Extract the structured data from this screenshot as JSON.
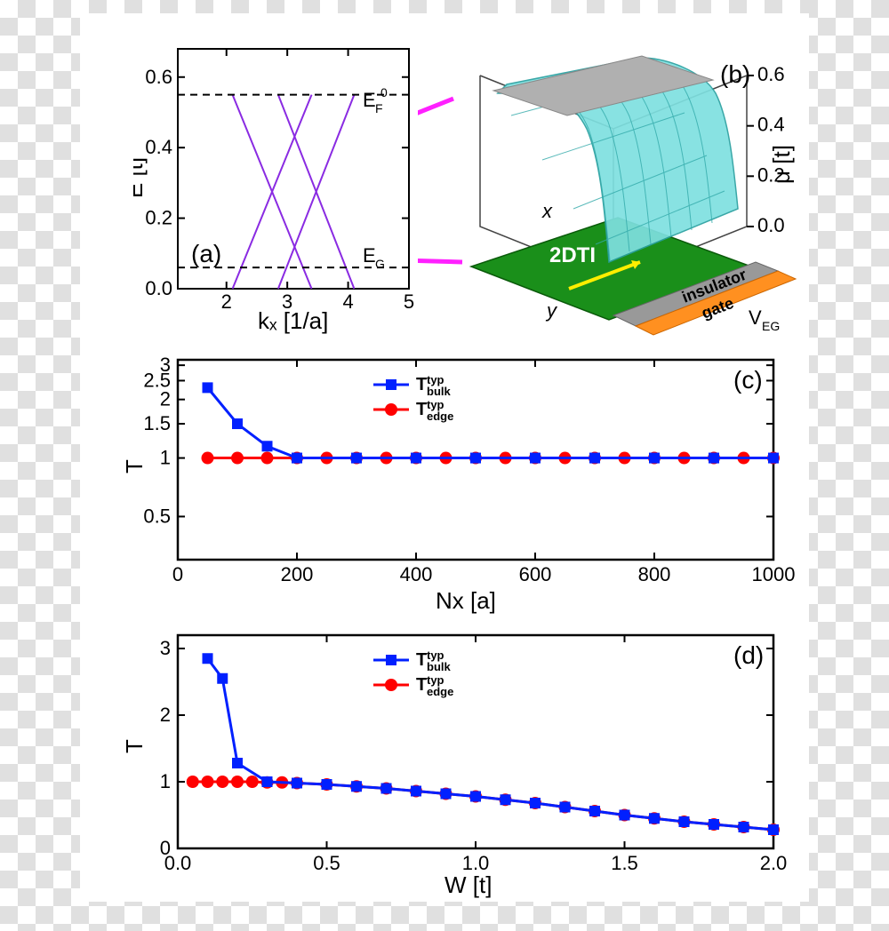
{
  "panel_a": {
    "label": "(a)",
    "xlabel": "kₓ  [1/a]",
    "ylabel": "E  [t]",
    "xlim": [
      1.2,
      5.0
    ],
    "ylim": [
      0.0,
      0.68
    ],
    "xticks": [
      2,
      3,
      4,
      5
    ],
    "yticks": [
      0.0,
      0.2,
      0.4,
      0.6
    ],
    "line_color": "#8a2be2",
    "dash_lines": [
      {
        "y": 0.55,
        "label": "E_F^0"
      },
      {
        "y": 0.06,
        "label": "E_G"
      }
    ]
  },
  "panel_b": {
    "label": "(b)",
    "zlabel": "μ  [t]",
    "zticks": [
      0.0,
      0.2,
      0.4,
      0.6
    ],
    "text_2dti": "2DTI",
    "text_insulator": "insulator",
    "text_gate": "gate",
    "text_veg": "V_EG",
    "text_x": "x",
    "text_y": "y",
    "surface_color": "#7ee0e0",
    "base_color": "#1a8f1a",
    "gate_color": "#ff9020",
    "insulator_color": "#999999"
  },
  "panel_c": {
    "label": "(c)",
    "xlabel": "Nx  [a]",
    "ylabel": "T",
    "xlim": [
      0,
      1000
    ],
    "ylim": [
      0.3,
      3.2
    ],
    "xticks": [
      0,
      200,
      400,
      600,
      800,
      1000
    ],
    "yticks": [
      0.5,
      1,
      1.5,
      2,
      2.5,
      3
    ],
    "ytick_labels": [
      "0.5",
      "1",
      "1.5",
      "2",
      "2.5",
      "3"
    ],
    "series_bulk": {
      "label": "T_bulk^typ",
      "color": "#0020ff",
      "marker": "square",
      "x": [
        50,
        100,
        150,
        200,
        300,
        400,
        500,
        600,
        700,
        800,
        900,
        1000
      ],
      "y": [
        2.3,
        1.5,
        1.15,
        1.0,
        1.0,
        1.0,
        1.0,
        1.0,
        1.0,
        1.0,
        1.0,
        1.0
      ]
    },
    "series_edge": {
      "label": "T_edge^typ",
      "color": "#ff0000",
      "marker": "circle",
      "x": [
        50,
        100,
        150,
        200,
        250,
        300,
        350,
        400,
        450,
        500,
        550,
        600,
        650,
        700,
        750,
        800,
        850,
        900,
        950,
        1000
      ],
      "y": [
        1.0,
        1.0,
        1.0,
        1.0,
        1.0,
        1.0,
        1.0,
        1.0,
        1.0,
        1.0,
        1.0,
        1.0,
        1.0,
        1.0,
        1.0,
        1.0,
        1.0,
        1.0,
        1.0,
        1.0
      ]
    }
  },
  "panel_d": {
    "label": "(d)",
    "xlabel": "W  [t]",
    "ylabel": "T",
    "xlim": [
      0.0,
      2.0
    ],
    "ylim": [
      0.0,
      3.2
    ],
    "xticks": [
      0.0,
      0.5,
      1.0,
      1.5,
      2.0
    ],
    "yticks": [
      0,
      1,
      2,
      3
    ],
    "series_bulk": {
      "label": "T_bulk^typ",
      "color": "#0020ff",
      "marker": "square",
      "x": [
        0.1,
        0.15,
        0.2,
        0.3,
        0.4,
        0.5,
        0.6,
        0.7,
        0.8,
        0.9,
        1.0,
        1.1,
        1.2,
        1.3,
        1.4,
        1.5,
        1.6,
        1.7,
        1.8,
        1.9,
        2.0
      ],
      "y": [
        2.85,
        2.55,
        1.28,
        1.0,
        0.98,
        0.96,
        0.93,
        0.9,
        0.86,
        0.82,
        0.78,
        0.73,
        0.68,
        0.62,
        0.56,
        0.5,
        0.45,
        0.4,
        0.36,
        0.32,
        0.28
      ]
    },
    "series_edge": {
      "label": "T_edge^typ",
      "color": "#ff0000",
      "marker": "circle",
      "x": [
        0.05,
        0.1,
        0.15,
        0.2,
        0.25,
        0.3,
        0.35,
        0.4,
        0.5,
        0.6,
        0.7,
        0.8,
        0.9,
        1.0,
        1.1,
        1.2,
        1.3,
        1.4,
        1.5,
        1.6,
        1.7,
        1.8,
        1.9,
        2.0
      ],
      "y": [
        1.0,
        1.0,
        1.0,
        1.0,
        1.0,
        0.99,
        0.99,
        0.98,
        0.96,
        0.93,
        0.9,
        0.86,
        0.82,
        0.78,
        0.73,
        0.68,
        0.62,
        0.56,
        0.5,
        0.45,
        0.4,
        0.36,
        0.32,
        0.28
      ]
    }
  }
}
